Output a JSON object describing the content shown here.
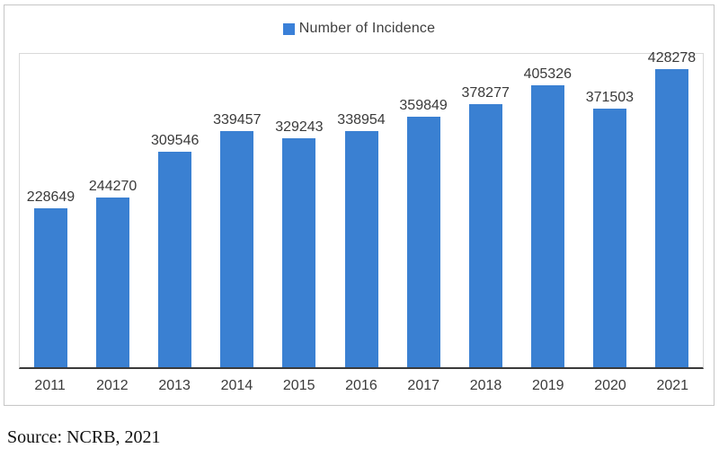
{
  "chart_data": {
    "type": "bar",
    "title": "",
    "legend": "Number of Incidence",
    "legend_position": "top",
    "categories": [
      "2011",
      "2012",
      "2013",
      "2014",
      "2015",
      "2016",
      "2017",
      "2018",
      "2019",
      "2020",
      "2021"
    ],
    "values": [
      228649,
      244270,
      309546,
      339457,
      329243,
      338954,
      359849,
      378277,
      405326,
      371503,
      428278
    ],
    "ylim": [
      0,
      450000
    ],
    "xlabel": "",
    "ylabel": "",
    "grid": false,
    "data_labels": true,
    "bar_color": "#3a80d2",
    "legend_swatch_color": "#3a80d8",
    "axis_line_color": "#3a3a3a"
  },
  "source_text": "Source: NCRB, 2021"
}
